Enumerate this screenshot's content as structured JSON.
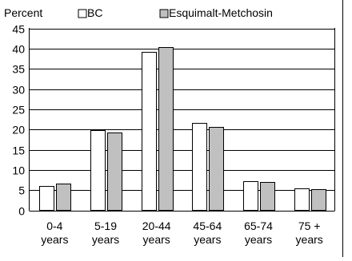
{
  "chart_data": {
    "type": "bar",
    "ylabel": "Percent",
    "ylim": [
      0,
      45
    ],
    "yticks": [
      0,
      5,
      10,
      15,
      20,
      25,
      30,
      35,
      40,
      45
    ],
    "grid": true,
    "legend_position": "top",
    "categories": [
      [
        "0-4",
        "years"
      ],
      [
        "5-19",
        "years"
      ],
      [
        "20-44",
        "years"
      ],
      [
        "45-64",
        "years"
      ],
      [
        "65-74",
        "years"
      ],
      [
        "75 +",
        "years"
      ]
    ],
    "series": [
      {
        "name": "BC",
        "color": "#ffffff",
        "values": [
          6.1,
          19.9,
          39.1,
          21.7,
          7.2,
          5.4
        ]
      },
      {
        "name": "Esquimalt-Metchosin",
        "color": "#c0c0c0",
        "values": [
          6.6,
          19.2,
          40.3,
          20.6,
          7.1,
          5.2
        ]
      }
    ]
  }
}
